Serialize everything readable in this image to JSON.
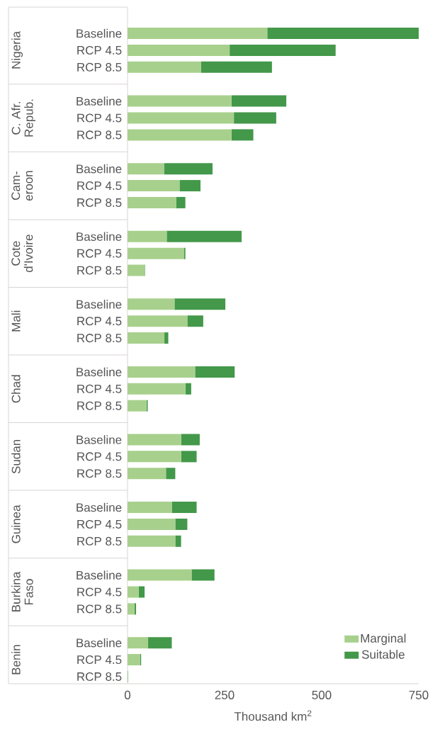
{
  "chart_data": {
    "type": "bar",
    "orientation": "horizontal",
    "stacked": true,
    "categories": [
      "Baseline",
      "RCP 4.5",
      "RCP 8.5",
      "Baseline",
      "RCP 4.5",
      "RCP 8.5",
      "Baseline",
      "RCP 4.5",
      "RCP 8.5",
      "Baseline",
      "RCP 4.5",
      "RCP 8.5",
      "Baseline",
      "RCP 4.5",
      "RCP 8.5",
      "Baseline",
      "RCP 4.5",
      "RCP 8.5",
      "Baseline",
      "RCP 4.5",
      "RCP 8.5",
      "Baseline",
      "RCP 4.5",
      "RCP 8.5",
      "Baseline",
      "RCP 4.5",
      "RCP 8.5",
      "Baseline",
      "RCP 4.5",
      "RCP 8.5"
    ],
    "series": [
      {
        "name": "Marginal",
        "color": "#a8d08d",
        "values": [
          360,
          263,
          189,
          268,
          274,
          268,
          94,
          134,
          125,
          101,
          146,
          44,
          121,
          154,
          95,
          174,
          149,
          49,
          138,
          138,
          99,
          114,
          123,
          123,
          165,
          29,
          18,
          53,
          32,
          2
        ]
      },
      {
        "name": "Suitable",
        "color": "#43984a",
        "values": [
          390,
          273,
          183,
          141,
          109,
          56,
          125,
          54,
          24,
          193,
          3,
          1,
          131,
          41,
          10,
          102,
          15,
          3,
          48,
          40,
          24,
          64,
          31,
          15,
          59,
          15,
          4,
          61,
          3,
          0
        ]
      }
    ],
    "annotations": [
      "Nigeria",
      "C. Afr. Repub.",
      "Cam-eroon",
      "Cote d'Ivoire",
      "Mali",
      "Chad",
      "Sudan",
      "Guinea",
      "Burkina Faso",
      "Benin"
    ],
    "xlabel": "Thousand km$^{2}$",
    "xlim": [
      0,
      750
    ],
    "xticks": [
      0,
      250,
      500,
      750
    ],
    "legend": "bottom right",
    "grid": false
  }
}
